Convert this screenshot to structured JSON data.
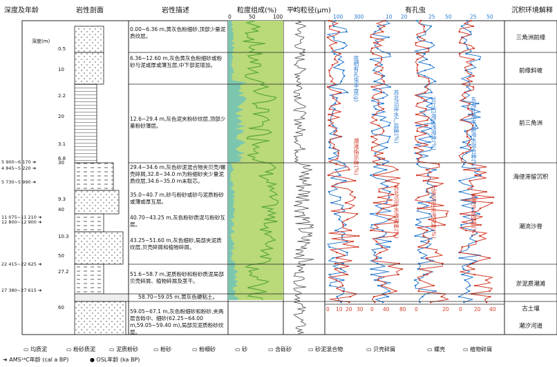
{
  "headers": {
    "depth_age": "深度及年龄",
    "profile": "岩性剖面",
    "description": "岩性描述",
    "grain_comp": "粒度组成(%)",
    "mean_grain": "平均粒径(μm)",
    "foram": "有孔虫",
    "environment": "沉积环境解释"
  },
  "depth_label": "深度(m)",
  "depth_ticks": [
    "0.5",
    "10",
    "2.2",
    "20",
    "3.1",
    "6.8",
    "30",
    "9.3",
    "40",
    "10.3",
    "50",
    "27.2",
    "60"
  ],
  "ages": [
    "5 900~6 170",
    "4 845~5 220",
    "5 730~5 990",
    "11 075~11 210",
    "12 800~12 900",
    "22 415~22 625",
    "27 380~27 615"
  ],
  "descriptions": [
    "0.00~6.36 m,黄灰色粉细砂,顶部少量泥质纹层。",
    "6.36~12.60 m,灰色黄灰色粉细砂或粉砂与泥或厚或薄互层,中下部泥增加。",
    "12.6~29.4 m,灰色泥夹粉砂纹层,顶部少量粉砂薄层。",
    "29.4~34.6 m,灰色砂泥混合物夹贝壳/螺壳碎屑,32.8~34.0 m为粉细砂夹少量泥质纹层,34.6~35.0 m未取芯。",
    "35.0~40.7 m,砂与粉砂或砂与泥质粉砂或薄或厚互层。",
    "40.70~43.25 m,灰色粉砂质泥与粉砂互层。",
    "43.25~51.60 m,灰色细砂,局部夹泥质纹层,贝壳碎屑和植物碎屑。",
    "51.6~58.7 m,泥质粉砂和粉砂质泥局部贝壳碎屑、植物碎屑及茎干。",
    "58.70~59.05 m,黄灰色硬粘土。",
    "59.05~67.1 m,灰色粉细砂和粉砂,夹两层含砾中、细砂(62.25~64.00 m,59.05~59.40 m),局部见泥质粉砂纹层。"
  ],
  "environments": [
    "三角洲前缘",
    "前缘斜坡",
    "前三角洲",
    "海侵滞留沉积",
    "潮流沙脊",
    "淤泥质潮滩",
    "古土壤",
    "潮汐河道"
  ],
  "grain_axis": [
    "0",
    "50",
    "100"
  ],
  "mean_axis": [
    "0",
    "100",
    "200",
    "300"
  ],
  "foram_top_axes": [
    [
      "100",
      "300"
    ],
    [
      "10",
      "20"
    ],
    [
      "25",
      "50"
    ],
    [
      "25",
      "50"
    ]
  ],
  "foram_bottom_axes": [
    [
      "0",
      "10",
      "20",
      "30"
    ],
    [
      "0",
      "40",
      "80"
    ],
    [
      "0",
      "20"
    ],
    [
      "0",
      "20",
      "40"
    ]
  ],
  "curve_labels": [
    {
      "text": "底栖有孔虫丰度(g)",
      "color": "#2a7bd0"
    },
    {
      "text": "潮滩指示种(%)",
      "color": "#d23b2a"
    },
    {
      "text": "苏北沿岸水广盐种(%)",
      "color": "#2a7bd0"
    },
    {
      "text": "苏北沿岸水浅海种(%)",
      "color": "#d23b2a"
    },
    {
      "text": "长江口海区浅海种(%)",
      "color": "#2a7bd0"
    },
    {
      "text": "江浙沿岸水浅海种(%)",
      "color": "#d23b2a"
    },
    {
      "text": "东海外海水-黄海水混合种(%)",
      "color": "#2a7bd0"
    },
    {
      "text": "黄海冷水团种(%)",
      "color": "#d23b2a"
    }
  ],
  "legend": [
    "均质泥",
    "粉砂质泥",
    "泥质粉砂",
    "粉砂",
    "粉细砂",
    "砂",
    "含砾砂",
    "砂泥混合物",
    "贝壳碎屑",
    "螺壳",
    "植物碎屑"
  ],
  "legend2": [
    "AMS¹⁴C年龄 (cal a BP)",
    "OSL年龄 (ka BP)"
  ],
  "grain_inset_labels": [
    "0.1",
    "100",
    "1",
    "5"
  ],
  "colors": {
    "blue": "#2a7bd0",
    "red": "#d23b2a",
    "green": "#b9d97a",
    "dark_green": "#5aa83a",
    "teal": "#7cc6b0"
  }
}
